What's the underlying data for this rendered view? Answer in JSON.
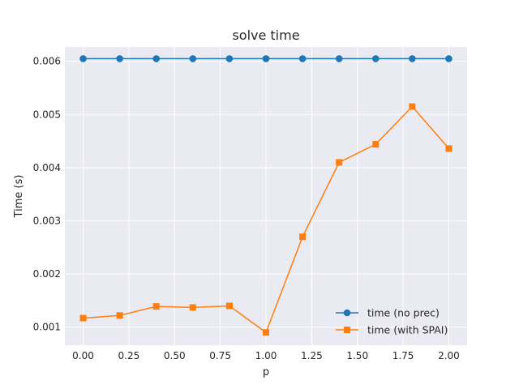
{
  "chart_data": {
    "type": "line",
    "title": "solve time",
    "xlabel": "p",
    "ylabel": "Time (s)",
    "xlim": [
      -0.1,
      2.1
    ],
    "ylim": [
      0.00066,
      0.00627
    ],
    "x_ticks": [
      0.0,
      0.25,
      0.5,
      0.75,
      1.0,
      1.25,
      1.5,
      1.75,
      2.0
    ],
    "x_tick_labels": [
      "0.00",
      "0.25",
      "0.50",
      "0.75",
      "1.00",
      "1.25",
      "1.50",
      "1.75",
      "2.00"
    ],
    "y_ticks": [
      0.001,
      0.002,
      0.003,
      0.004,
      0.005,
      0.006
    ],
    "y_tick_labels": [
      "0.001",
      "0.002",
      "0.003",
      "0.004",
      "0.005",
      "0.006"
    ],
    "grid": true,
    "legend_position": "lower-right",
    "x": [
      0.0,
      0.2,
      0.4,
      0.6,
      0.8,
      1.0,
      1.2,
      1.4,
      1.6,
      1.8,
      2.0
    ],
    "series": [
      {
        "name": "time (no prec)",
        "color": "#1f77b4",
        "marker": "circle",
        "values": [
          0.00605,
          0.00605,
          0.00605,
          0.00605,
          0.00605,
          0.00605,
          0.00605,
          0.00605,
          0.00605,
          0.00605,
          0.00605
        ]
      },
      {
        "name": "time (with SPAI)",
        "color": "#ff7f0e",
        "marker": "square",
        "values": [
          0.00117,
          0.00122,
          0.00139,
          0.00137,
          0.0014,
          0.0009,
          0.0027,
          0.0041,
          0.00444,
          0.00515,
          0.00436
        ]
      }
    ]
  },
  "style": {
    "plot_background": "#eaeaf2",
    "grid_color": "#ffffff"
  }
}
